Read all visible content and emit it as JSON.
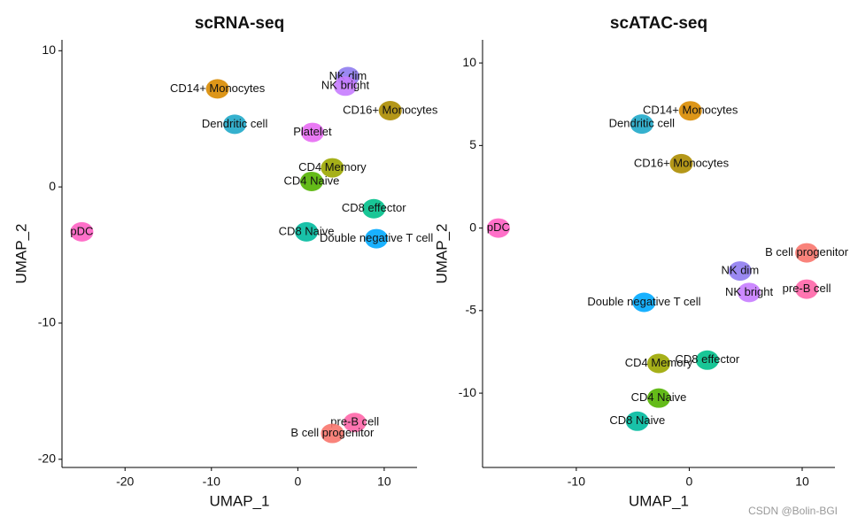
{
  "chart_data": [
    {
      "type": "scatter",
      "title": "scRNA-seq",
      "x_label": "UMAP_1",
      "y_label": "UMAP_2",
      "xlim": [
        -27.3,
        13.8
      ],
      "ylim": [
        -20.6,
        10.8
      ],
      "xticks": [
        -20,
        -10,
        0,
        10
      ],
      "yticks": [
        -20,
        -10,
        0,
        10
      ],
      "series": [
        {
          "name": "CD14+ Monocytes",
          "color": "#D98B00",
          "x": [
            -9.3
          ],
          "values": [
            7.2
          ]
        },
        {
          "name": "Dendritic cell",
          "color": "#1FA8C9",
          "x": [
            -7.3
          ],
          "values": [
            4.6
          ]
        },
        {
          "name": "NK dim",
          "color": "#8F7CF0",
          "x": [
            5.8
          ],
          "values": [
            8.1
          ]
        },
        {
          "name": "NK bright",
          "color": "#C77CFF",
          "x": [
            5.5
          ],
          "values": [
            7.4
          ]
        },
        {
          "name": "CD16+ Monocytes",
          "color": "#AC8C00",
          "x": [
            10.7
          ],
          "values": [
            5.6
          ]
        },
        {
          "name": "Platelet",
          "color": "#E76BF3",
          "x": [
            1.7
          ],
          "values": [
            4.0
          ]
        },
        {
          "name": "CD4 Memory",
          "color": "#9CA700",
          "x": [
            4.0
          ],
          "values": [
            1.4
          ]
        },
        {
          "name": "CD4 Naive",
          "color": "#53B400",
          "x": [
            1.6
          ],
          "values": [
            0.4
          ]
        },
        {
          "name": "CD8 Naive",
          "color": "#00BA9E",
          "x": [
            1.0
          ],
          "values": [
            -3.3
          ]
        },
        {
          "name": "CD8 effector",
          "color": "#00C08B",
          "x": [
            8.8
          ],
          "values": [
            -1.6
          ]
        },
        {
          "name": "Double negative T cell",
          "color": "#00A9FF",
          "x": [
            9.1
          ],
          "values": [
            -3.8
          ]
        },
        {
          "name": "pDC",
          "color": "#FF61C3",
          "x": [
            -25.0
          ],
          "values": [
            -3.3
          ]
        },
        {
          "name": "pre-B cell",
          "color": "#FF66A8",
          "x": [
            6.6
          ],
          "values": [
            -17.3
          ]
        },
        {
          "name": "B cell progenitor",
          "color": "#F8766D",
          "x": [
            4.0
          ],
          "values": [
            -18.1
          ]
        }
      ]
    },
    {
      "type": "scatter",
      "title": "scATAC-seq",
      "x_label": "UMAP_1",
      "y_label": "UMAP_2",
      "xlim": [
        -18.3,
        12.9
      ],
      "ylim": [
        -14.5,
        11.4
      ],
      "xticks": [
        -10,
        0,
        10
      ],
      "yticks": [
        -10,
        -5,
        0,
        5,
        10
      ],
      "series": [
        {
          "name": "CD14+ Monocytes",
          "color": "#D98B00",
          "x": [
            0.1
          ],
          "values": [
            7.1
          ]
        },
        {
          "name": "Dendritic cell",
          "color": "#1FA8C9",
          "x": [
            -4.2
          ],
          "values": [
            6.3
          ]
        },
        {
          "name": "CD16+ Monocytes",
          "color": "#AC8C00",
          "x": [
            -0.7
          ],
          "values": [
            3.9
          ]
        },
        {
          "name": "pDC",
          "color": "#FF61C3",
          "x": [
            -16.9
          ],
          "values": [
            0
          ]
        },
        {
          "name": "B cell progenitor",
          "color": "#F8766D",
          "x": [
            10.4
          ],
          "values": [
            -1.5
          ]
        },
        {
          "name": "pre-B cell",
          "color": "#FF66A8",
          "x": [
            10.4
          ],
          "values": [
            -3.7
          ]
        },
        {
          "name": "NK dim",
          "color": "#8F7CF0",
          "x": [
            4.5
          ],
          "values": [
            -2.6
          ]
        },
        {
          "name": "NK bright",
          "color": "#C77CFF",
          "x": [
            5.3
          ],
          "values": [
            -3.9
          ]
        },
        {
          "name": "Double negative T cell",
          "color": "#00A9FF",
          "x": [
            -4.0
          ],
          "values": [
            -4.5
          ]
        },
        {
          "name": "CD4 Memory",
          "color": "#9CA700",
          "x": [
            -2.7
          ],
          "values": [
            -8.2
          ]
        },
        {
          "name": "CD8 effector",
          "color": "#00C08B",
          "x": [
            1.6
          ],
          "values": [
            -8.0
          ]
        },
        {
          "name": "CD4 Naive",
          "color": "#53B400",
          "x": [
            -2.7
          ],
          "values": [
            -10.3
          ]
        },
        {
          "name": "CD8 Naive",
          "color": "#00BA9E",
          "x": [
            -4.6
          ],
          "values": [
            -11.7
          ]
        }
      ]
    }
  ],
  "watermark": "CSDN @Bolin-BGI"
}
